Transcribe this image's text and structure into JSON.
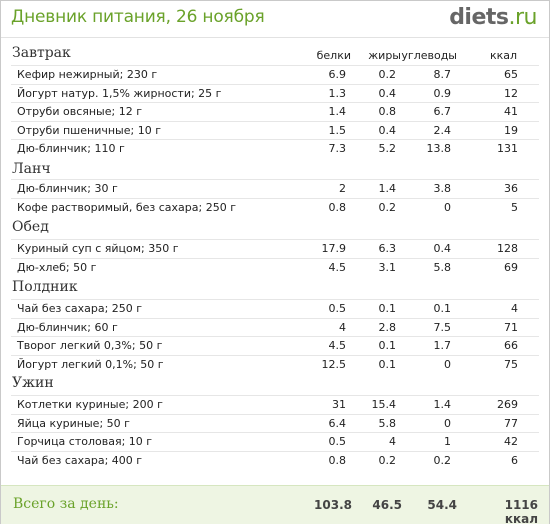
{
  "header": {
    "title": "Дневник питания, 26 ноября",
    "logo_main": "diets",
    "logo_tld": ".ru"
  },
  "columns": {
    "protein": "белки",
    "fat": "жиры",
    "carbs": "углеводы",
    "kcal": "ккал"
  },
  "sections": [
    {
      "title": "Завтрак",
      "items": [
        {
          "name": "Кефир нежирный; 230 г",
          "protein": "6.9",
          "fat": "0.2",
          "carbs": "8.7",
          "kcal": "65"
        },
        {
          "name": "Йогурт натур. 1,5% жирности; 25 г",
          "protein": "1.3",
          "fat": "0.4",
          "carbs": "0.9",
          "kcal": "12"
        },
        {
          "name": "Отруби овсяные; 12 г",
          "protein": "1.4",
          "fat": "0.8",
          "carbs": "6.7",
          "kcal": "41"
        },
        {
          "name": "Отруби пшеничные; 10 г",
          "protein": "1.5",
          "fat": "0.4",
          "carbs": "2.4",
          "kcal": "19"
        },
        {
          "name": "Дю-блинчик; 110 г",
          "protein": "7.3",
          "fat": "5.2",
          "carbs": "13.8",
          "kcal": "131"
        }
      ]
    },
    {
      "title": "Ланч",
      "items": [
        {
          "name": "Дю-блинчик; 30 г",
          "protein": "2",
          "fat": "1.4",
          "carbs": "3.8",
          "kcal": "36"
        },
        {
          "name": "Кофе растворимый, без сахара; 250 г",
          "protein": "0.8",
          "fat": "0.2",
          "carbs": "0",
          "kcal": "5"
        }
      ]
    },
    {
      "title": "Обед",
      "items": [
        {
          "name": "Куриный суп с яйцом; 350 г",
          "protein": "17.9",
          "fat": "6.3",
          "carbs": "0.4",
          "kcal": "128"
        },
        {
          "name": "Дю-хлеб; 50 г",
          "protein": "4.5",
          "fat": "3.1",
          "carbs": "5.8",
          "kcal": "69"
        }
      ]
    },
    {
      "title": "Полдник",
      "items": [
        {
          "name": "Чай без сахара; 250 г",
          "protein": "0.5",
          "fat": "0.1",
          "carbs": "0.1",
          "kcal": "4"
        },
        {
          "name": "Дю-блинчик; 60 г",
          "protein": "4",
          "fat": "2.8",
          "carbs": "7.5",
          "kcal": "71"
        },
        {
          "name": "Творог легкий 0,3%; 50 г",
          "protein": "4.5",
          "fat": "0.1",
          "carbs": "1.7",
          "kcal": "66"
        },
        {
          "name": "Йогурт легкий 0,1%; 50 г",
          "protein": "12.5",
          "fat": "0.1",
          "carbs": "0",
          "kcal": "75"
        }
      ]
    },
    {
      "title": "Ужин",
      "items": [
        {
          "name": "Котлетки куриные; 200 г",
          "protein": "31",
          "fat": "15.4",
          "carbs": "1.4",
          "kcal": "269"
        },
        {
          "name": "Яйца куриные; 50 г",
          "protein": "6.4",
          "fat": "5.8",
          "carbs": "0",
          "kcal": "77"
        },
        {
          "name": "Горчица столовая; 10 г",
          "protein": "0.5",
          "fat": "4",
          "carbs": "1",
          "kcal": "42"
        },
        {
          "name": "Чай без сахара; 400 г",
          "protein": "0.8",
          "fat": "0.2",
          "carbs": "0.2",
          "kcal": "6"
        }
      ]
    }
  ],
  "totals": {
    "label": "Всего за день:",
    "protein": "103.8",
    "fat": "46.5",
    "carbs": "54.4",
    "kcal": "1116 ккал"
  },
  "colors": {
    "accent": "#6aa22a",
    "footer_bg": "#eef5e3"
  }
}
